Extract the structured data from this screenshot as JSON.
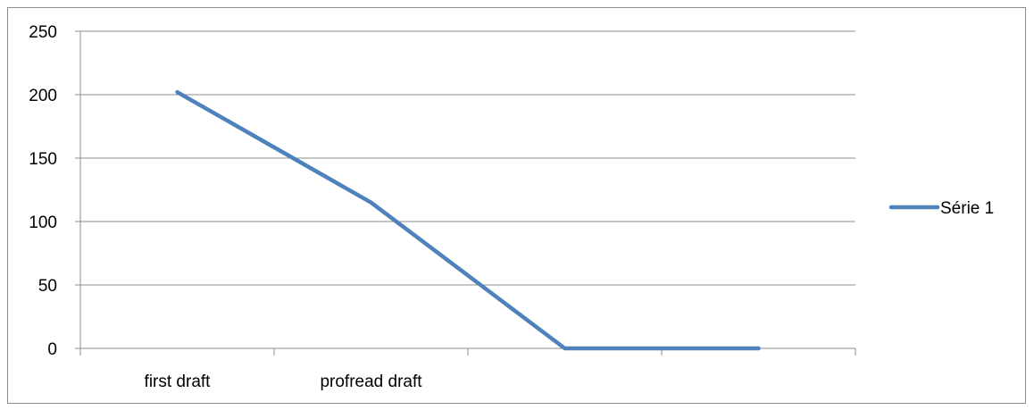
{
  "chart_data": {
    "type": "line",
    "title": "",
    "xlabel": "",
    "ylabel": "",
    "categories": [
      "first draft",
      "profread draft",
      "",
      ""
    ],
    "series": [
      {
        "name": "Série 1",
        "values": [
          202,
          115,
          0,
          0
        ],
        "color": "#4f81bd"
      }
    ],
    "ylim": [
      0,
      250
    ],
    "yticks": [
      0,
      50,
      100,
      150,
      200,
      250
    ],
    "grid": true,
    "legend": "right"
  }
}
